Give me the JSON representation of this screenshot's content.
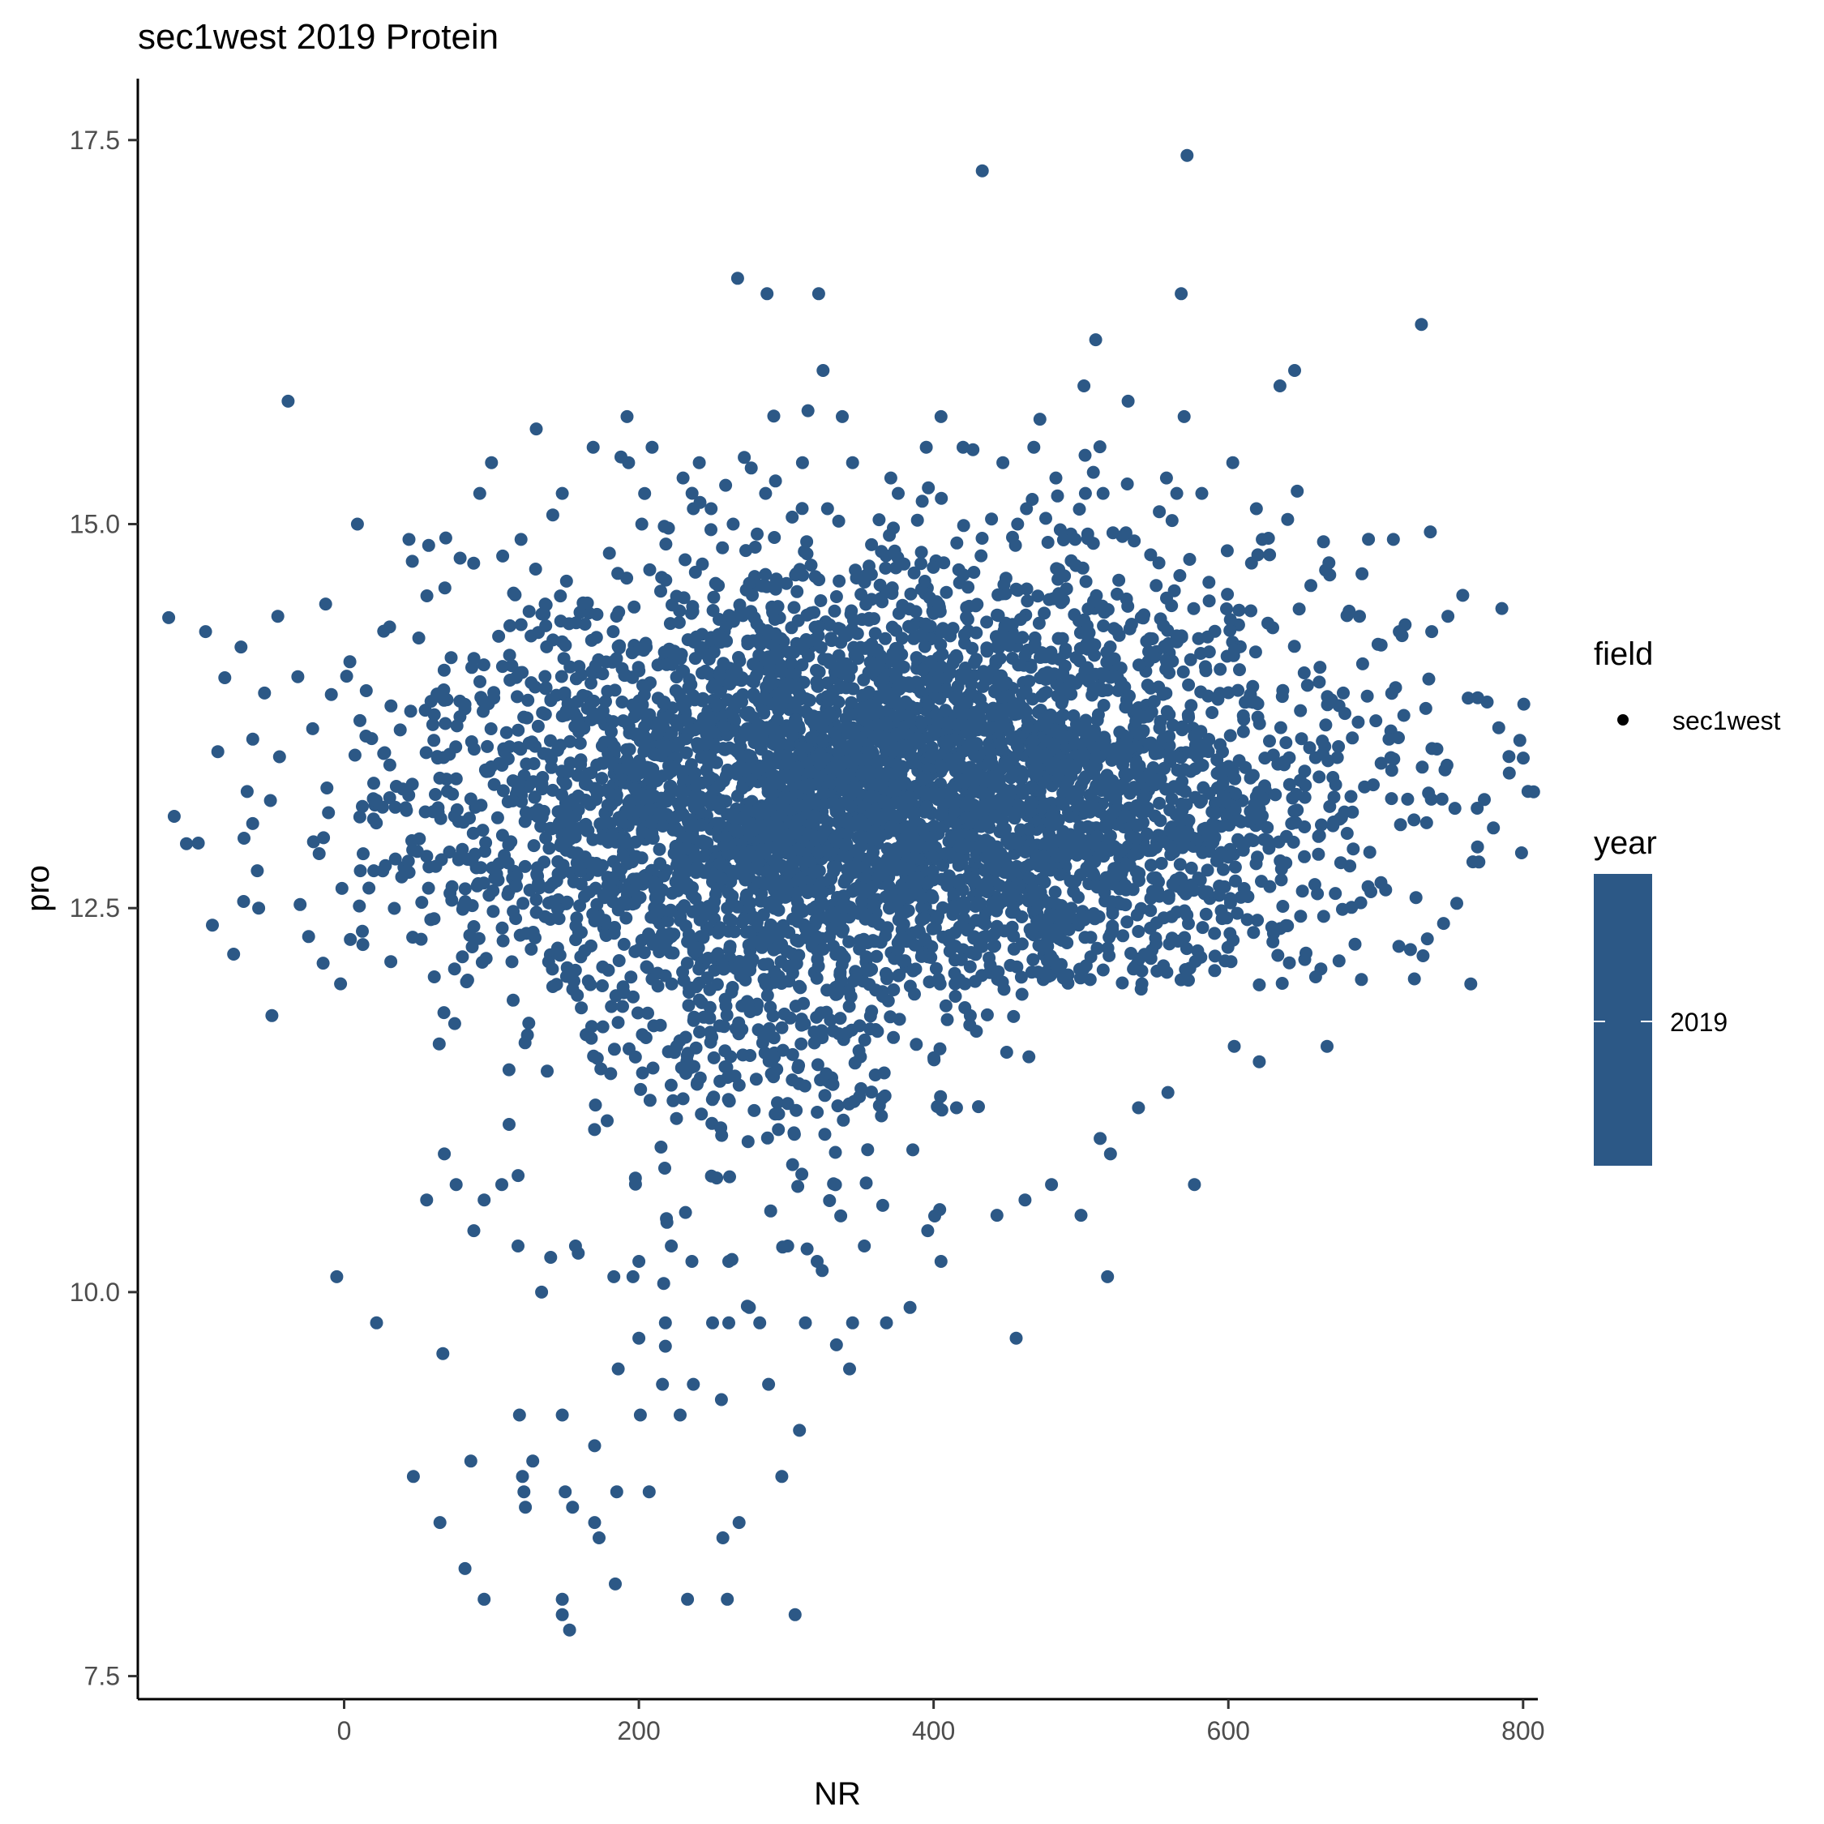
{
  "chart_data": {
    "type": "scatter",
    "title": "sec1west 2019 Protein",
    "xlabel": "NR",
    "ylabel": "pro",
    "xlim": [
      -140,
      810
    ],
    "ylim": [
      7.35,
      17.9
    ],
    "x_ticks": [
      0,
      200,
      400,
      600,
      800
    ],
    "y_ticks": [
      7.5,
      10.0,
      12.5,
      15.0,
      17.5
    ],
    "x_tick_labels": [
      "0",
      "200",
      "400",
      "600",
      "800"
    ],
    "y_tick_labels": [
      "7.5",
      "10.0",
      "12.5",
      "15.0",
      "17.5"
    ],
    "grid": false,
    "legend_position": "right",
    "point_color": "#2C5886",
    "series": [
      {
        "name": "sec1west",
        "points": [
          [
            433,
            17.3
          ],
          [
            572,
            17.4
          ],
          [
            267,
            16.6
          ],
          [
            287,
            16.5
          ],
          [
            322,
            16.5
          ],
          [
            568,
            16.5
          ],
          [
            731,
            16.3
          ],
          [
            510,
            16.2
          ],
          [
            325,
            16.0
          ],
          [
            635,
            15.9
          ],
          [
            645,
            16.0
          ],
          [
            502,
            15.9
          ],
          [
            -38,
            15.8
          ],
          [
            532,
            15.8
          ],
          [
            570,
            15.7
          ],
          [
            405,
            15.7
          ],
          [
            192,
            15.7
          ],
          [
            338,
            15.7
          ],
          [
            169,
            15.5
          ],
          [
            209,
            15.5
          ],
          [
            395,
            15.5
          ],
          [
            468,
            15.5
          ],
          [
            100,
            15.4
          ],
          [
            193,
            15.4
          ],
          [
            241,
            15.4
          ],
          [
            345,
            15.4
          ],
          [
            603,
            15.4
          ],
          [
            420,
            15.5
          ],
          [
            447,
            15.4
          ],
          [
            558,
            15.3
          ],
          [
            230,
            15.3
          ],
          [
            311,
            15.4
          ],
          [
            371,
            15.3
          ],
          [
            483,
            15.3
          ],
          [
            92,
            15.2
          ],
          [
            148,
            15.2
          ],
          [
            286,
            15.2
          ],
          [
            376,
            15.2
          ],
          [
            503,
            15.2
          ],
          [
            515,
            15.2
          ],
          [
            582,
            15.2
          ],
          [
            565,
            15.2
          ],
          [
            619,
            15.1
          ],
          [
            237,
            15.1
          ],
          [
            328,
            15.1
          ],
          [
            463,
            15.1
          ],
          [
            9,
            15.0
          ],
          [
            202,
            15.0
          ],
          [
            249,
            15.1
          ],
          [
            264,
            15.0
          ],
          [
            457,
            15.0
          ],
          [
            496,
            14.9
          ],
          [
            712,
            14.9
          ],
          [
            44,
            14.9
          ],
          [
            120,
            14.9
          ],
          [
            620,
            14.8
          ],
          [
            -45,
            14.4
          ],
          [
            -94,
            14.3
          ],
          [
            -70,
            14.2
          ],
          [
            -81,
            14.0
          ],
          [
            -54,
            13.9
          ],
          [
            -62,
            13.6
          ],
          [
            -50,
            13.2
          ],
          [
            -58,
            12.5
          ],
          [
            -75,
            12.2
          ],
          [
            -49,
            11.8
          ],
          [
            -5,
            10.1
          ],
          [
            22,
            9.8
          ],
          [
            47,
            8.8
          ],
          [
            65,
            8.5
          ],
          [
            82,
            8.2
          ],
          [
            86,
            8.9
          ],
          [
            95,
            8.0
          ],
          [
            148,
            8.0
          ],
          [
            148,
            7.9
          ],
          [
            153,
            7.8
          ],
          [
            233,
            8.0
          ],
          [
            260,
            8.0
          ],
          [
            306,
            7.9
          ],
          [
            257,
            8.4
          ],
          [
            268,
            8.5
          ],
          [
            184,
            8.1
          ],
          [
            170,
            8.5
          ],
          [
            173,
            8.4
          ],
          [
            150,
            8.7
          ],
          [
            155,
            8.6
          ],
          [
            122,
            8.7
          ],
          [
            123,
            8.6
          ],
          [
            128,
            8.9
          ],
          [
            121,
            8.8
          ],
          [
            148,
            9.2
          ],
          [
            119,
            9.2
          ],
          [
            170,
            9.0
          ],
          [
            201,
            9.2
          ],
          [
            228,
            9.2
          ],
          [
            256,
            9.3
          ],
          [
            216,
            9.4
          ],
          [
            237,
            9.4
          ],
          [
            288,
            9.4
          ],
          [
            309,
            9.1
          ],
          [
            297,
            8.8
          ],
          [
            185,
            8.7
          ],
          [
            207,
            8.7
          ],
          [
            186,
            9.5
          ],
          [
            200,
            9.7
          ],
          [
            218,
            9.8
          ],
          [
            250,
            9.8
          ],
          [
            282,
            9.8
          ],
          [
            261,
            9.8
          ],
          [
            275,
            9.9
          ],
          [
            313,
            9.8
          ],
          [
            345,
            9.8
          ],
          [
            368,
            9.8
          ],
          [
            384,
            9.9
          ],
          [
            343,
            9.5
          ],
          [
            456,
            9.7
          ],
          [
            134,
            10.0
          ],
          [
            118,
            10.3
          ],
          [
            107,
            10.7
          ],
          [
            95,
            10.6
          ],
          [
            88,
            10.4
          ],
          [
            56,
            10.6
          ],
          [
            68,
            10.9
          ],
          [
            76,
            10.7
          ],
          [
            67,
            9.6
          ],
          [
            157,
            10.3
          ],
          [
            183,
            10.1
          ],
          [
            196,
            10.1
          ],
          [
            200,
            10.2
          ],
          [
            222,
            10.3
          ],
          [
            236,
            10.2
          ],
          [
            261,
            10.2
          ],
          [
            301,
            10.3
          ],
          [
            321,
            10.2
          ],
          [
            353,
            10.3
          ],
          [
            396,
            10.4
          ],
          [
            405,
            10.2
          ],
          [
            500,
            10.5
          ],
          [
            518,
            10.1
          ],
          [
            577,
            10.7
          ],
          [
            480,
            10.7
          ],
          [
            443,
            10.5
          ],
          [
            462,
            10.6
          ],
          [
            520,
            10.9
          ],
          [
            513,
            11.0
          ],
          [
            539,
            11.2
          ],
          [
            559,
            11.3
          ],
          [
            604,
            11.6
          ],
          [
            621,
            11.5
          ],
          [
            667,
            11.6
          ],
          [
            735,
            12.3
          ],
          [
            746,
            12.4
          ],
          [
            770,
            12.8
          ],
          [
            747,
            13.4
          ],
          [
            709,
            13.6
          ],
          [
            734,
            13.8
          ],
          [
            678,
            13.9
          ],
          [
            689,
            14.4
          ],
          [
            716,
            14.3
          ],
          [
            738,
            14.3
          ],
          [
            749,
            14.4
          ],
          [
            666,
            14.7
          ],
          [
            656,
            14.6
          ],
          [
            623,
            14.9
          ],
          [
            628,
            14.8
          ],
          [
            551,
            14.6
          ],
          [
            587,
            14.5
          ]
        ],
        "cloud": {
          "n_points": 5200,
          "x_mean": 360,
          "x_sd": 150,
          "y_mean": 13.2,
          "y_sd": 0.75,
          "seed": 20190
        }
      }
    ],
    "legend": {
      "shape_title": "field",
      "shape_entries": [
        "sec1west"
      ],
      "color_title": "year",
      "color_labels": [
        "2019"
      ]
    }
  }
}
